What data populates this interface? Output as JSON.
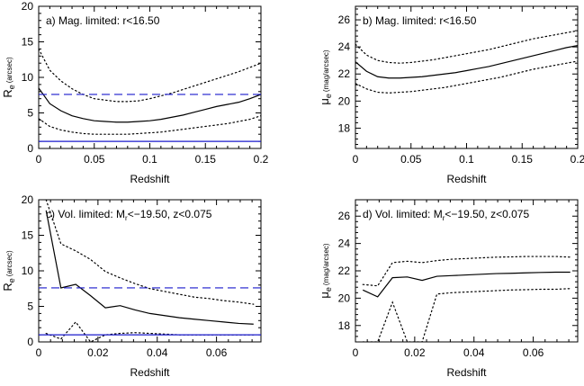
{
  "colors": {
    "axis": "#000000",
    "curve": "#000000",
    "ref_line": "#1a1acc"
  },
  "chart_data": [
    {
      "type": "line",
      "panel_label": "a) Mag. limited: r<16.50",
      "xlabel": "Redshift",
      "ylabel": "Re (arcsec)",
      "xlim": [
        0,
        0.2
      ],
      "ylim": [
        0,
        20
      ],
      "xticks": [
        0,
        0.05,
        0.1,
        0.15,
        0.2
      ],
      "xtick_labels": [
        "0",
        "0.05",
        "0.1",
        "0.15",
        "0.2"
      ],
      "yticks": [
        0,
        5,
        10,
        15,
        20
      ],
      "ytick_labels": [
        "0",
        "5",
        "10",
        "15",
        "20"
      ],
      "series": [
        {
          "style": "solid",
          "x": [
            0,
            0.01,
            0.02,
            0.03,
            0.04,
            0.05,
            0.06,
            0.07,
            0.08,
            0.09,
            0.1,
            0.11,
            0.12,
            0.13,
            0.14,
            0.15,
            0.16,
            0.17,
            0.18,
            0.19,
            0.2
          ],
          "y": [
            8.5,
            6.3,
            5.3,
            4.6,
            4.2,
            3.9,
            3.8,
            3.7,
            3.7,
            3.8,
            3.9,
            4.1,
            4.4,
            4.7,
            5.1,
            5.5,
            5.9,
            6.2,
            6.5,
            7.0,
            7.6
          ]
        },
        {
          "style": "dotted",
          "x": [
            0,
            0.01,
            0.02,
            0.03,
            0.04,
            0.05,
            0.06,
            0.07,
            0.08,
            0.09,
            0.1,
            0.11,
            0.12,
            0.13,
            0.14,
            0.15,
            0.16,
            0.17,
            0.18,
            0.19,
            0.2
          ],
          "y": [
            14.0,
            11.0,
            9.5,
            8.4,
            7.6,
            7.0,
            6.8,
            6.6,
            6.6,
            6.7,
            7.0,
            7.4,
            7.8,
            8.3,
            8.8,
            9.3,
            9.8,
            10.3,
            10.8,
            11.4,
            12.0
          ]
        },
        {
          "style": "dotted",
          "x": [
            0,
            0.01,
            0.02,
            0.03,
            0.04,
            0.05,
            0.06,
            0.07,
            0.08,
            0.09,
            0.1,
            0.11,
            0.12,
            0.13,
            0.14,
            0.15,
            0.16,
            0.17,
            0.18,
            0.19,
            0.2
          ],
          "y": [
            4.2,
            3.1,
            2.6,
            2.3,
            2.1,
            2.0,
            2.0,
            2.0,
            2.0,
            2.1,
            2.2,
            2.3,
            2.5,
            2.7,
            2.9,
            3.1,
            3.3,
            3.5,
            3.8,
            4.1,
            4.6
          ]
        },
        {
          "style": "dashed",
          "color": "blue",
          "x": [
            0,
            0.2
          ],
          "y": [
            7.6,
            7.6
          ]
        },
        {
          "style": "solid",
          "color": "blue",
          "x": [
            0,
            0.2
          ],
          "y": [
            1.0,
            1.0
          ]
        }
      ]
    },
    {
      "type": "line",
      "panel_label": "b) Mag. limited: r<16.50",
      "xlabel": "Redshift",
      "ylabel": "μe (mag/arcsec)",
      "xlim": [
        0,
        0.2
      ],
      "ylim": [
        16.5,
        27.0
      ],
      "xticks": [
        0,
        0.05,
        0.1,
        0.15,
        0.2
      ],
      "xtick_labels": [
        "0",
        "0.05",
        "0.1",
        "0.15",
        "0.2"
      ],
      "yticks": [
        18,
        20,
        22,
        24,
        26
      ],
      "ytick_labels": [
        "18",
        "20",
        "22",
        "24",
        "26"
      ],
      "series": [
        {
          "style": "solid",
          "x": [
            0,
            0.01,
            0.02,
            0.03,
            0.04,
            0.05,
            0.06,
            0.07,
            0.08,
            0.09,
            0.1,
            0.11,
            0.12,
            0.13,
            0.14,
            0.15,
            0.16,
            0.17,
            0.18,
            0.19,
            0.2
          ],
          "y": [
            22.9,
            22.2,
            21.8,
            21.7,
            21.7,
            21.75,
            21.8,
            21.9,
            22.0,
            22.1,
            22.25,
            22.4,
            22.55,
            22.75,
            22.95,
            23.15,
            23.35,
            23.55,
            23.75,
            23.95,
            24.1
          ]
        },
        {
          "style": "dotted",
          "x": [
            0,
            0.01,
            0.02,
            0.03,
            0.04,
            0.05,
            0.06,
            0.07,
            0.08,
            0.09,
            0.1,
            0.11,
            0.12,
            0.13,
            0.14,
            0.15,
            0.16,
            0.17,
            0.18,
            0.19,
            0.2
          ],
          "y": [
            24.2,
            23.4,
            23.0,
            22.85,
            22.8,
            22.85,
            22.95,
            23.05,
            23.2,
            23.35,
            23.5,
            23.65,
            23.8,
            24.0,
            24.2,
            24.4,
            24.6,
            24.75,
            24.9,
            25.05,
            25.2
          ]
        },
        {
          "style": "dotted",
          "x": [
            0,
            0.01,
            0.02,
            0.03,
            0.04,
            0.05,
            0.06,
            0.07,
            0.08,
            0.09,
            0.1,
            0.11,
            0.12,
            0.13,
            0.14,
            0.15,
            0.16,
            0.17,
            0.18,
            0.19,
            0.2
          ],
          "y": [
            21.3,
            20.9,
            20.65,
            20.6,
            20.65,
            20.7,
            20.8,
            20.9,
            21.0,
            21.15,
            21.3,
            21.45,
            21.6,
            21.75,
            21.95,
            22.15,
            22.35,
            22.5,
            22.65,
            22.8,
            22.95
          ]
        }
      ]
    },
    {
      "type": "line",
      "panel_label": "c) Vol. limited: M",
      "panel_label_sub": "r",
      "panel_label_rest": "<−19.50, z<0.075",
      "xlabel": "Redshift",
      "ylabel": "Re (arcsec)",
      "xlim": [
        0,
        0.075
      ],
      "ylim": [
        0,
        20
      ],
      "xticks": [
        0,
        0.02,
        0.04,
        0.06
      ],
      "xtick_labels": [
        "0",
        "0.02",
        "0.04",
        "0.06"
      ],
      "yticks": [
        0,
        5,
        10,
        15,
        20
      ],
      "ytick_labels": [
        "0",
        "5",
        "10",
        "15",
        "20"
      ],
      "series": [
        {
          "style": "solid",
          "x": [
            0.0025,
            0.0075,
            0.0125,
            0.0175,
            0.0225,
            0.0275,
            0.0325,
            0.0375,
            0.0425,
            0.0475,
            0.0525,
            0.0575,
            0.0625,
            0.0675,
            0.0725
          ],
          "y": [
            18.5,
            7.6,
            8.1,
            6.5,
            4.8,
            5.1,
            4.5,
            4.0,
            3.7,
            3.4,
            3.2,
            3.0,
            2.8,
            2.6,
            2.5
          ]
        },
        {
          "style": "dotted",
          "x": [
            0.0025,
            0.0075,
            0.0125,
            0.0175,
            0.0225,
            0.0275,
            0.0325,
            0.0375,
            0.0425,
            0.0475,
            0.0525,
            0.0575,
            0.0625,
            0.0675,
            0.0725
          ],
          "y": [
            20.0,
            13.8,
            12.8,
            11.6,
            9.9,
            9.0,
            8.2,
            7.5,
            7.1,
            6.7,
            6.3,
            6.1,
            5.8,
            5.6,
            5.3
          ]
        },
        {
          "style": "dotted",
          "x": [
            0.0025,
            0.0075,
            0.0125,
            0.0175,
            0.0225,
            0.0275,
            0.0325,
            0.0375,
            0.0425,
            0.0475,
            0.0525,
            0.0575,
            0.0625,
            0.0675,
            0.0725
          ],
          "y": [
            1.2,
            0.4,
            2.8,
            0.0,
            1.0,
            1.2,
            1.3,
            1.2,
            1.1,
            1.0,
            1.0,
            1.0,
            1.0,
            1.0,
            1.0
          ]
        },
        {
          "style": "dashed",
          "color": "blue",
          "x": [
            0,
            0.075
          ],
          "y": [
            7.6,
            7.6
          ]
        },
        {
          "style": "solid",
          "color": "blue",
          "x": [
            0,
            0.075
          ],
          "y": [
            1.0,
            1.0
          ]
        }
      ]
    },
    {
      "type": "line",
      "panel_label": "d) Vol. limited: M",
      "panel_label_sub": "r",
      "panel_label_rest": "<−19.50, z<0.075",
      "xlabel": "Redshift",
      "ylabel": "μe (mag/arcsec)",
      "xlim": [
        0,
        0.075
      ],
      "ylim": [
        16.8,
        27.2
      ],
      "xticks": [
        0,
        0.02,
        0.04,
        0.06
      ],
      "xtick_labels": [
        "0",
        "0.02",
        "0.04",
        "0.06"
      ],
      "yticks": [
        18,
        20,
        22,
        24,
        26
      ],
      "ytick_labels": [
        "18",
        "20",
        "22",
        "24",
        "26"
      ],
      "series": [
        {
          "style": "solid",
          "x": [
            0.0025,
            0.0075,
            0.0125,
            0.0175,
            0.0225,
            0.0275,
            0.0325,
            0.0375,
            0.0425,
            0.0475,
            0.0525,
            0.0575,
            0.0625,
            0.0675,
            0.0725
          ],
          "y": [
            20.6,
            20.1,
            21.5,
            21.55,
            21.3,
            21.6,
            21.65,
            21.7,
            21.75,
            21.8,
            21.82,
            21.85,
            21.88,
            21.9,
            21.9
          ]
        },
        {
          "style": "dotted",
          "x": [
            0.0025,
            0.0075,
            0.0125,
            0.0175,
            0.0225,
            0.0275,
            0.0325,
            0.0375,
            0.0425,
            0.0475,
            0.0525,
            0.0575,
            0.0625,
            0.0675,
            0.0725
          ],
          "y": [
            21.0,
            20.9,
            22.6,
            22.7,
            22.6,
            22.75,
            22.85,
            22.9,
            22.95,
            23.0,
            23.02,
            23.05,
            23.05,
            23.05,
            23.0
          ]
        },
        {
          "style": "dotted",
          "x": [
            0.0025,
            0.0075,
            0.0125,
            0.0175,
            0.0225,
            0.0275,
            0.0325,
            0.0375,
            0.0425,
            0.0475,
            0.0525,
            0.0575,
            0.0625,
            0.0675,
            0.0725
          ],
          "y": [
            16.8,
            16.8,
            19.7,
            16.8,
            16.8,
            20.3,
            20.4,
            20.45,
            20.5,
            20.55,
            20.6,
            20.62,
            20.65,
            20.65,
            20.7
          ]
        }
      ]
    }
  ]
}
